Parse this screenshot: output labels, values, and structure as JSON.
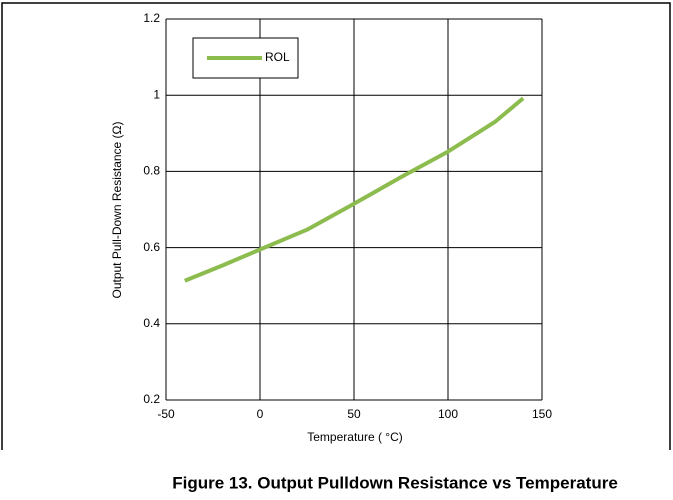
{
  "chart_data": {
    "type": "line",
    "xlabel": "Temperature ( °C)",
    "ylabel": "Output Pull-Down Resistance (Ω)",
    "caption": "Figure 13. Output Pulldown Resistance vs Temperature",
    "x": [
      -40,
      -20,
      0,
      25,
      50,
      75,
      100,
      125,
      140
    ],
    "series": [
      {
        "name": "ROL",
        "color": "#8cbb4e",
        "values": [
          0.513,
          0.553,
          0.595,
          0.647,
          0.715,
          0.785,
          0.852,
          0.93,
          0.992
        ]
      }
    ],
    "xlim": [
      -50,
      150
    ],
    "xticks": [
      -50,
      0,
      50,
      100,
      150
    ],
    "ylim": [
      0.2,
      1.2
    ],
    "yticks": [
      0.2,
      0.4,
      0.6,
      0.8,
      1,
      1.2
    ],
    "grid": true,
    "legend": "upper left"
  }
}
